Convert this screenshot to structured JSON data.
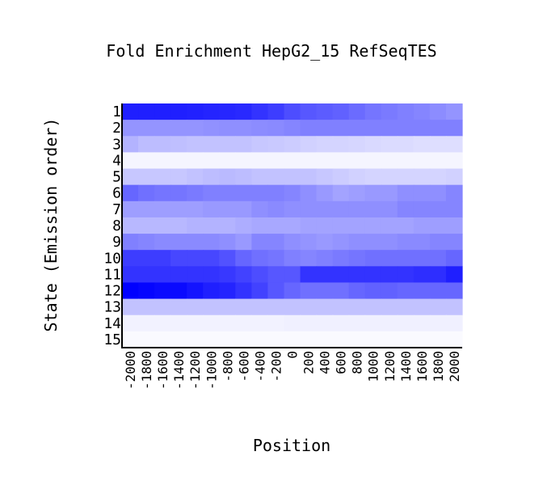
{
  "chart_data": {
    "type": "heatmap",
    "title": "Fold Enrichment HepG2_15 RefSeqTES",
    "xlabel": "Position",
    "ylabel": "State (Emission order)",
    "x_ticks": [
      "-2000",
      "-1800",
      "-1600",
      "-1400",
      "-1200",
      "-1000",
      "-800",
      "-600",
      "-400",
      "-200",
      "0",
      "200",
      "400",
      "600",
      "800",
      "1000",
      "1200",
      "1400",
      "1600",
      "1800",
      "2000"
    ],
    "y_ticks": [
      "1",
      "2",
      "3",
      "4",
      "5",
      "6",
      "7",
      "8",
      "9",
      "10",
      "11",
      "12",
      "13",
      "14",
      "15"
    ],
    "color_low": "#ffffff",
    "color_high": "#0000ff",
    "values": [
      [
        0.88,
        0.88,
        0.88,
        0.88,
        0.87,
        0.86,
        0.85,
        0.84,
        0.8,
        0.76,
        0.7,
        0.66,
        0.64,
        0.62,
        0.58,
        0.54,
        0.52,
        0.5,
        0.48,
        0.45,
        0.42
      ],
      [
        0.42,
        0.42,
        0.42,
        0.42,
        0.42,
        0.43,
        0.44,
        0.44,
        0.45,
        0.46,
        0.48,
        0.5,
        0.5,
        0.5,
        0.5,
        0.5,
        0.5,
        0.5,
        0.5,
        0.5,
        0.5
      ],
      [
        0.3,
        0.26,
        0.26,
        0.25,
        0.24,
        0.24,
        0.24,
        0.24,
        0.22,
        0.21,
        0.2,
        0.18,
        0.17,
        0.17,
        0.16,
        0.15,
        0.14,
        0.14,
        0.13,
        0.13,
        0.13
      ],
      [
        0.04,
        0.04,
        0.04,
        0.04,
        0.04,
        0.04,
        0.04,
        0.04,
        0.04,
        0.04,
        0.04,
        0.04,
        0.04,
        0.04,
        0.04,
        0.04,
        0.04,
        0.04,
        0.04,
        0.04,
        0.04
      ],
      [
        0.22,
        0.22,
        0.22,
        0.22,
        0.24,
        0.26,
        0.27,
        0.26,
        0.24,
        0.24,
        0.24,
        0.24,
        0.22,
        0.2,
        0.18,
        0.17,
        0.17,
        0.17,
        0.17,
        0.17,
        0.18
      ],
      [
        0.6,
        0.56,
        0.54,
        0.54,
        0.52,
        0.5,
        0.5,
        0.5,
        0.5,
        0.5,
        0.48,
        0.44,
        0.4,
        0.36,
        0.38,
        0.4,
        0.4,
        0.44,
        0.44,
        0.44,
        0.48
      ],
      [
        0.38,
        0.38,
        0.38,
        0.38,
        0.38,
        0.4,
        0.4,
        0.4,
        0.44,
        0.46,
        0.44,
        0.44,
        0.44,
        0.44,
        0.44,
        0.44,
        0.44,
        0.48,
        0.48,
        0.48,
        0.48
      ],
      [
        0.28,
        0.28,
        0.28,
        0.28,
        0.3,
        0.3,
        0.3,
        0.32,
        0.34,
        0.34,
        0.34,
        0.36,
        0.36,
        0.36,
        0.36,
        0.36,
        0.36,
        0.36,
        0.38,
        0.38,
        0.38
      ],
      [
        0.5,
        0.48,
        0.46,
        0.46,
        0.46,
        0.46,
        0.44,
        0.4,
        0.48,
        0.48,
        0.44,
        0.42,
        0.4,
        0.42,
        0.44,
        0.44,
        0.44,
        0.46,
        0.46,
        0.48,
        0.48
      ],
      [
        0.76,
        0.76,
        0.76,
        0.72,
        0.72,
        0.72,
        0.68,
        0.6,
        0.56,
        0.54,
        0.5,
        0.48,
        0.5,
        0.52,
        0.54,
        0.56,
        0.56,
        0.56,
        0.56,
        0.56,
        0.6
      ],
      [
        0.8,
        0.8,
        0.8,
        0.8,
        0.8,
        0.8,
        0.78,
        0.74,
        0.7,
        0.66,
        0.66,
        0.8,
        0.8,
        0.8,
        0.8,
        0.8,
        0.8,
        0.8,
        0.82,
        0.82,
        0.88
      ],
      [
        1.0,
        0.98,
        0.96,
        0.96,
        0.92,
        0.88,
        0.86,
        0.8,
        0.74,
        0.66,
        0.6,
        0.56,
        0.56,
        0.56,
        0.6,
        0.62,
        0.62,
        0.6,
        0.6,
        0.6,
        0.6
      ],
      [
        0.24,
        0.24,
        0.24,
        0.24,
        0.24,
        0.24,
        0.24,
        0.24,
        0.24,
        0.24,
        0.24,
        0.24,
        0.24,
        0.24,
        0.24,
        0.24,
        0.24,
        0.24,
        0.24,
        0.24,
        0.24
      ],
      [
        0.05,
        0.05,
        0.05,
        0.05,
        0.05,
        0.05,
        0.05,
        0.05,
        0.05,
        0.05,
        0.06,
        0.06,
        0.06,
        0.06,
        0.06,
        0.06,
        0.06,
        0.06,
        0.06,
        0.06,
        0.06
      ],
      [
        0.02,
        0.02,
        0.02,
        0.02,
        0.02,
        0.02,
        0.02,
        0.02,
        0.02,
        0.02,
        0.02,
        0.02,
        0.02,
        0.02,
        0.02,
        0.02,
        0.02,
        0.02,
        0.02,
        0.02,
        0.02
      ]
    ]
  }
}
